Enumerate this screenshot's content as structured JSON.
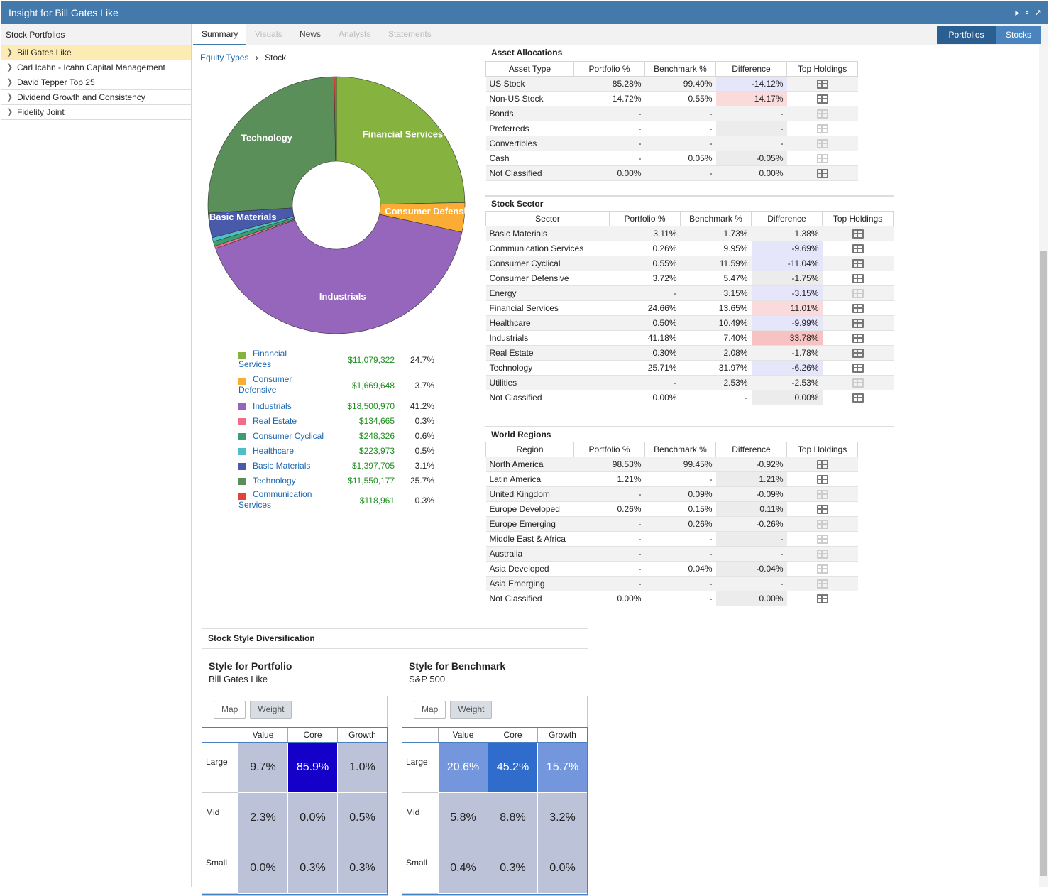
{
  "window": {
    "title": "Insight for Bill Gates Like"
  },
  "left": {
    "header": "Stock Portfolios",
    "items": [
      "Bill Gates Like",
      "Carl Icahn - Icahn Capital Management",
      "David Tepper Top 25",
      "Dividend Growth and Consistency",
      "Fidelity Joint"
    ]
  },
  "tabs": [
    "Summary",
    "Visuals",
    "News",
    "Analysts",
    "Statements"
  ],
  "toggle": {
    "portfolios": "Portfolios",
    "stocks": "Stocks"
  },
  "breadcrumb": {
    "link": "Equity Types",
    "current": "Stock"
  },
  "chart_data": {
    "type": "pie",
    "labels": [
      "Financial Services",
      "Consumer Defensive",
      "Industrials",
      "Real Estate",
      "Consumer Cyclical",
      "Healthcare",
      "Basic Materials",
      "Technology",
      "Communication Services"
    ],
    "values": [
      24.7,
      3.7,
      41.2,
      0.3,
      0.6,
      0.5,
      3.1,
      25.7,
      0.3
    ],
    "amounts": [
      "$11,079,322",
      "$1,669,648",
      "$18,500,970",
      "$134,665",
      "$248,326",
      "$223,973",
      "$1,397,705",
      "$11,550,177",
      "$118,961"
    ],
    "pcts": [
      "24.7%",
      "3.7%",
      "41.2%",
      "0.3%",
      "0.6%",
      "0.5%",
      "3.1%",
      "25.7%",
      "0.3%"
    ],
    "colors": [
      "#86b340",
      "#fbac35",
      "#9566bb",
      "#f26d8c",
      "#3a9e6e",
      "#4ebfc6",
      "#4a5aab",
      "#5a8f5a",
      "#e3413a"
    ],
    "slice_labels": [
      "Financial Services",
      "Consumer Defensive",
      "Industrials",
      "",
      "",
      "",
      "Basic Materials",
      "Technology",
      ""
    ]
  },
  "asset_alloc": {
    "title": "Asset Allocations",
    "headers": [
      "Asset Type",
      "Portfolio %",
      "Benchmark %",
      "Difference",
      "Top Holdings"
    ],
    "rows": [
      [
        "US Stock",
        "85.28%",
        "99.40%",
        "-14.12%",
        "neg",
        true
      ],
      [
        "Non-US Stock",
        "14.72%",
        "0.55%",
        "14.17%",
        "pos",
        true
      ],
      [
        "Bonds",
        "-",
        "-",
        "-",
        "",
        false
      ],
      [
        "Preferreds",
        "-",
        "-",
        "-",
        "",
        false
      ],
      [
        "Convertibles",
        "-",
        "-",
        "-",
        "",
        false
      ],
      [
        "Cash",
        "-",
        "0.05%",
        "-0.05%",
        "",
        false
      ],
      [
        "Not Classified",
        "0.00%",
        "-",
        "0.00%",
        "",
        true
      ]
    ]
  },
  "stock_sector": {
    "title": "Stock Sector",
    "headers": [
      "Sector",
      "Portfolio %",
      "Benchmark %",
      "Difference",
      "Top Holdings"
    ],
    "rows": [
      [
        "Basic Materials",
        "3.11%",
        "1.73%",
        "1.38%",
        "",
        true
      ],
      [
        "Communication Services",
        "0.26%",
        "9.95%",
        "-9.69%",
        "neg",
        true
      ],
      [
        "Consumer Cyclical",
        "0.55%",
        "11.59%",
        "-11.04%",
        "neg",
        true
      ],
      [
        "Consumer Defensive",
        "3.72%",
        "5.47%",
        "-1.75%",
        "",
        true
      ],
      [
        "Energy",
        "-",
        "3.15%",
        "-3.15%",
        "neg",
        false
      ],
      [
        "Financial Services",
        "24.66%",
        "13.65%",
        "11.01%",
        "pos",
        true
      ],
      [
        "Healthcare",
        "0.50%",
        "10.49%",
        "-9.99%",
        "neg",
        true
      ],
      [
        "Industrials",
        "41.18%",
        "7.40%",
        "33.78%",
        "pos2",
        true
      ],
      [
        "Real Estate",
        "0.30%",
        "2.08%",
        "-1.78%",
        "",
        true
      ],
      [
        "Technology",
        "25.71%",
        "31.97%",
        "-6.26%",
        "neg",
        true
      ],
      [
        "Utilities",
        "-",
        "2.53%",
        "-2.53%",
        "",
        false
      ],
      [
        "Not Classified",
        "0.00%",
        "-",
        "0.00%",
        "",
        true
      ]
    ]
  },
  "world_regions": {
    "title": "World Regions",
    "headers": [
      "Region",
      "Portfolio %",
      "Benchmark %",
      "Difference",
      "Top Holdings"
    ],
    "rows": [
      [
        "North America",
        "98.53%",
        "99.45%",
        "-0.92%",
        "",
        true
      ],
      [
        "Latin America",
        "1.21%",
        "-",
        "1.21%",
        "",
        true
      ],
      [
        "United Kingdom",
        "-",
        "0.09%",
        "-0.09%",
        "",
        false
      ],
      [
        "Europe Developed",
        "0.26%",
        "0.15%",
        "0.11%",
        "",
        true
      ],
      [
        "Europe Emerging",
        "-",
        "0.26%",
        "-0.26%",
        "",
        false
      ],
      [
        "Middle East & Africa",
        "-",
        "-",
        "-",
        "",
        false
      ],
      [
        "Australia",
        "-",
        "-",
        "-",
        "",
        false
      ],
      [
        "Asia Developed",
        "-",
        "0.04%",
        "-0.04%",
        "",
        false
      ],
      [
        "Asia Emerging",
        "-",
        "-",
        "-",
        "",
        false
      ],
      [
        "Not Classified",
        "0.00%",
        "-",
        "0.00%",
        "",
        true
      ]
    ]
  },
  "style_div": {
    "title": "Stock Style Diversification",
    "cols": [
      "Value",
      "Core",
      "Growth"
    ],
    "rows": [
      "Large",
      "Mid",
      "Small"
    ],
    "buttons": [
      "Map",
      "Weight"
    ],
    "portfolio": {
      "title": "Style for Portfolio",
      "subtitle": "Bill Gates Like",
      "cells": [
        [
          "9.7%",
          "85.9%",
          "1.0%"
        ],
        [
          "2.3%",
          "0.0%",
          "0.5%"
        ],
        [
          "0.0%",
          "0.3%",
          "0.3%"
        ]
      ],
      "colors": [
        [
          "#bcc3d9",
          "#1400c8",
          "#bcc3d9"
        ],
        [
          "#bcc3d9",
          "#bcc3d9",
          "#bcc3d9"
        ],
        [
          "#bcc3d9",
          "#bcc3d9",
          "#bcc3d9"
        ]
      ]
    },
    "benchmark": {
      "title": "Style for Benchmark",
      "subtitle": "S&P 500",
      "cells": [
        [
          "20.6%",
          "45.2%",
          "15.7%"
        ],
        [
          "5.8%",
          "8.8%",
          "3.2%"
        ],
        [
          "0.4%",
          "0.3%",
          "0.0%"
        ]
      ],
      "colors": [
        [
          "#7396dc",
          "#2f6ccb",
          "#7396dc"
        ],
        [
          "#bcc3d9",
          "#bcc3d9",
          "#bcc3d9"
        ],
        [
          "#bcc3d9",
          "#bcc3d9",
          "#bcc3d9"
        ]
      ]
    }
  }
}
